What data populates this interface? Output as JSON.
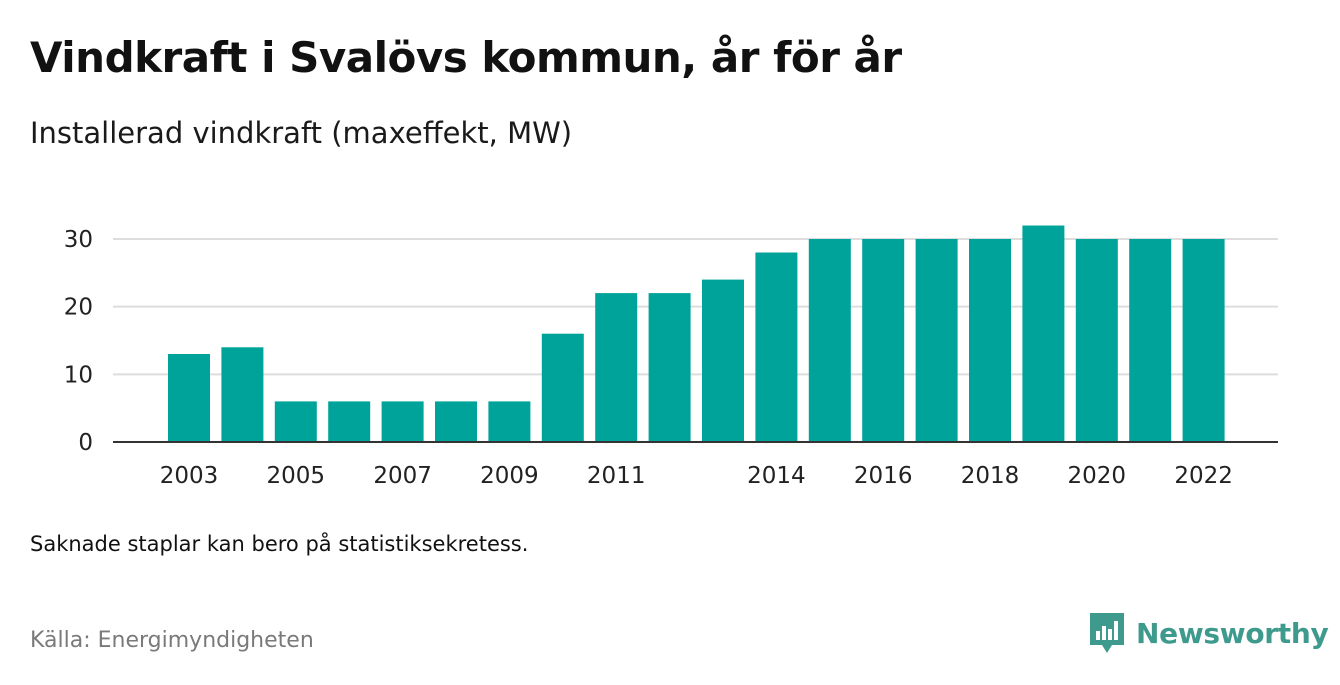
{
  "title": "Vindkraft i Svalövs kommun, år för år",
  "subtitle": "Installerad vindkraft (maxeffekt, MW)",
  "note": "Saknade staplar kan bero på statistiksekretess.",
  "source": "Källa: Energimyndigheten",
  "brand": {
    "name": "Newsworthy",
    "icon": "newsworthy-logo-icon",
    "color": "#3f9a8e"
  },
  "chart_data": {
    "type": "bar",
    "categories": [
      "2003",
      "2004",
      "2005",
      "2006",
      "2007",
      "2008",
      "2009",
      "2010",
      "2011",
      "2012",
      "2013",
      "2014",
      "2015",
      "2016",
      "2017",
      "2018",
      "2019",
      "2020",
      "2021",
      "2022"
    ],
    "values": [
      13,
      14,
      6,
      6,
      6,
      6,
      6,
      16,
      22,
      22,
      24,
      28,
      30,
      30,
      30,
      30,
      32,
      30,
      30,
      30
    ],
    "x_tick_labels": [
      "2003",
      "2005",
      "2007",
      "2009",
      "2011",
      "2014",
      "2016",
      "2018",
      "2020",
      "2022"
    ],
    "y_ticks": [
      0,
      10,
      20,
      30
    ],
    "ylim": [
      0,
      30
    ],
    "grid": true,
    "bar_color": "#00a39a"
  }
}
